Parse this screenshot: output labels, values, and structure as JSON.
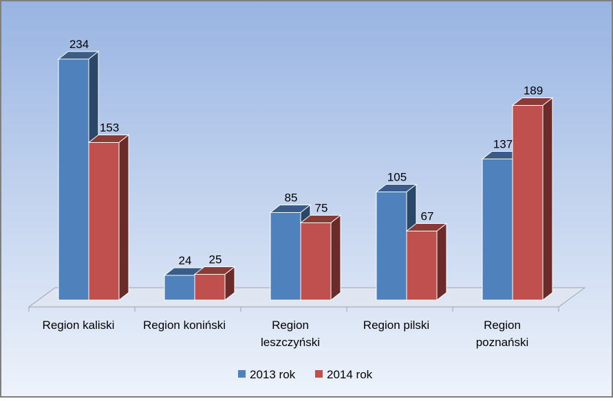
{
  "chart_data": {
    "type": "bar",
    "style": "3d-clustered-column",
    "categories": [
      [
        "Region kaliski"
      ],
      [
        "Region koniński"
      ],
      [
        "Region",
        "leszczyński"
      ],
      [
        "Region pilski"
      ],
      [
        "Region",
        "poznański"
      ]
    ],
    "series": [
      {
        "name": "2013 rok",
        "color": "#4f81bd",
        "values": [
          234,
          24,
          85,
          105,
          137
        ]
      },
      {
        "name": "2014 rok",
        "color": "#c0504d",
        "values": [
          153,
          25,
          75,
          67,
          189
        ]
      }
    ],
    "ylim": [
      0,
      250
    ],
    "data_labels": true,
    "legend_position": "bottom",
    "background": {
      "top": "#98b4e2",
      "bottom": "#eef3fb"
    }
  }
}
